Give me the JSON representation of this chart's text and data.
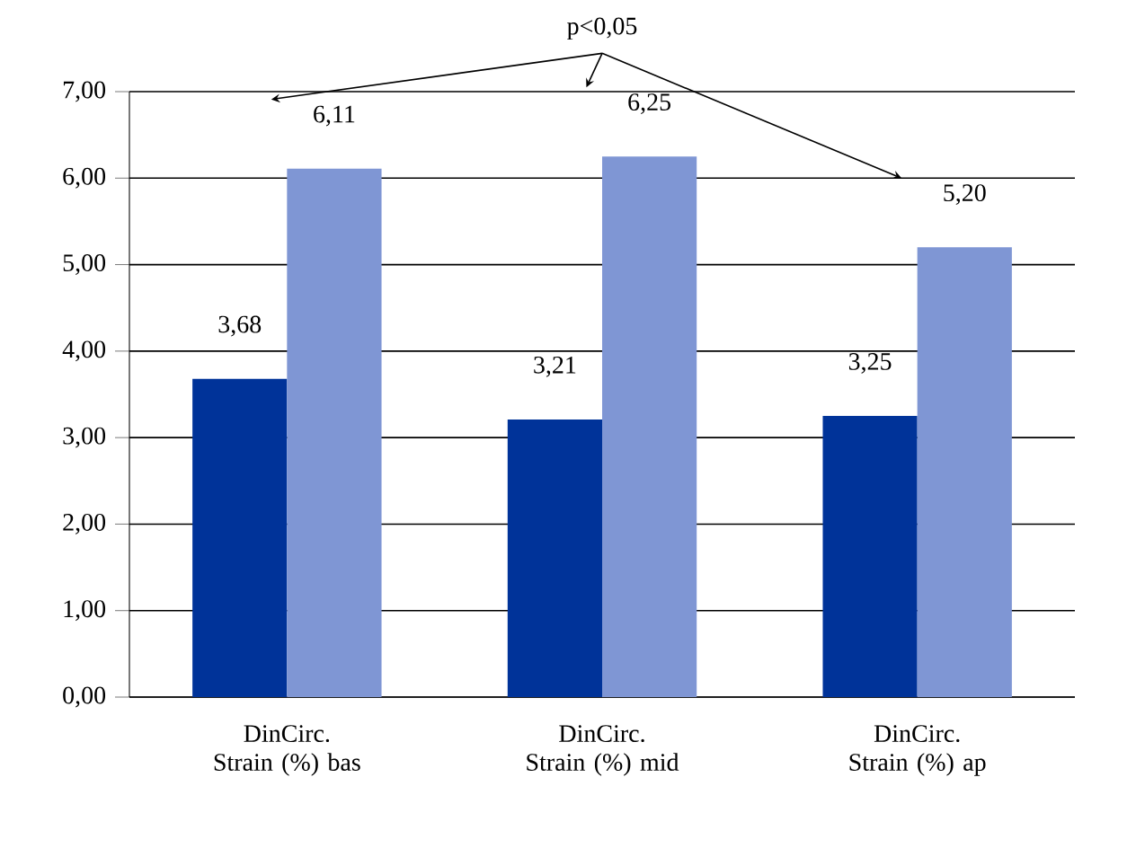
{
  "chart_data": {
    "type": "bar",
    "categories": [
      "DinCirc. Strain (%) bas",
      "DinCirc. Strain (%) mid",
      "DinCirc. Strain (%) ap"
    ],
    "series": [
      {
        "color": "#003399",
        "values": [
          3.68,
          3.21,
          3.25
        ],
        "value_labels": [
          "3,68",
          "3,21",
          "3,25"
        ]
      },
      {
        "color": "#7f96d4",
        "values": [
          6.11,
          6.25,
          5.2
        ],
        "value_labels": [
          "6,11",
          "6,25",
          "5,20"
        ]
      }
    ],
    "ylim": [
      0,
      7
    ],
    "yticks": [
      {
        "value": 0,
        "label": "0,00"
      },
      {
        "value": 1,
        "label": "1,00"
      },
      {
        "value": 2,
        "label": "2,00"
      },
      {
        "value": 3,
        "label": "3,00"
      },
      {
        "value": 4,
        "label": "4,00"
      },
      {
        "value": 5,
        "label": "5,00"
      },
      {
        "value": 6,
        "label": "6,00"
      },
      {
        "value": 7,
        "label": "7,00"
      }
    ],
    "grid": "y",
    "annotations": [
      "p<0,05"
    ]
  }
}
